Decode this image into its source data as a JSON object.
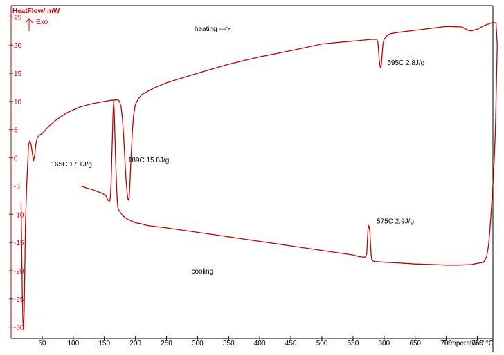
{
  "chart_data": {
    "type": "line",
    "ylabel": "HeatFlow/ mW",
    "exo_label": "Exo",
    "xlabel": "Temperature/ °C",
    "xlim": [
      0,
      775
    ],
    "ylim": [
      -32,
      27
    ],
    "xticks": [
      50,
      100,
      150,
      200,
      250,
      300,
      350,
      400,
      450,
      500,
      550,
      600,
      650,
      700,
      750
    ],
    "yticks": [
      25,
      20,
      15,
      10,
      5,
      0,
      -5,
      -10,
      -15,
      -20,
      -25,
      -30
    ],
    "grid": false,
    "colors": {
      "curve": "#c00000",
      "axis": "#cc0000",
      "frame": "#000000"
    },
    "series": [
      {
        "x": [
          16,
          17,
          18,
          19,
          20,
          21,
          22,
          23,
          25,
          27,
          28,
          29,
          30,
          32,
          34,
          36,
          38,
          40,
          42,
          45,
          50,
          60,
          70,
          80,
          90,
          100,
          110,
          120,
          130,
          140,
          150,
          155,
          160,
          165,
          170,
          173,
          175,
          177,
          179,
          181,
          183,
          185,
          187,
          188,
          189,
          190,
          191,
          193,
          195,
          197,
          200,
          205,
          210,
          230,
          250,
          300,
          350,
          400,
          450,
          500,
          550,
          580,
          588,
          590,
          591,
          592,
          593,
          594,
          595,
          596,
          597,
          598,
          600,
          605,
          610,
          620,
          650,
          700,
          725,
          730,
          735,
          740,
          750,
          760,
          775,
          780,
          782
        ],
        "y": [
          -8,
          -16,
          -24,
          -29,
          -30.5,
          -27,
          -20,
          -12,
          -5,
          -0.5,
          2,
          2.7,
          3,
          2.5,
          1,
          -0.5,
          0.5,
          2.5,
          3.5,
          4,
          4.3,
          5.5,
          6.5,
          7.3,
          8.0,
          8.5,
          9.0,
          9.3,
          9.6,
          9.8,
          10.0,
          10.1,
          10.2,
          10.2,
          10.3,
          10.2,
          9.8,
          9.0,
          7.0,
          4.0,
          0.0,
          -4.0,
          -6.5,
          -7.3,
          -7.5,
          -7.0,
          -5.0,
          0.0,
          4.5,
          7.5,
          9.5,
          10.5,
          11.2,
          12.4,
          13.3,
          15.0,
          16.6,
          17.9,
          19.0,
          20.2,
          20.7,
          21.0,
          21.0,
          20.5,
          19.0,
          17.5,
          16.5,
          16.0,
          16.0,
          17.0,
          18.5,
          20.0,
          21.0,
          21.7,
          22.0,
          22.2,
          22.6,
          23.3,
          23.2,
          22.9,
          22.6,
          22.5,
          22.8,
          23.4,
          24.0,
          23.9,
          20.0
        ]
      },
      {
        "x": [
          782,
          781,
          780,
          779,
          778,
          776,
          774,
          772,
          770,
          768,
          765,
          760,
          755,
          750,
          740,
          720,
          700,
          680,
          650,
          620,
          600,
          590,
          585,
          583,
          581,
          580,
          579,
          578,
          577,
          576,
          575,
          574,
          573,
          572,
          570,
          568,
          560,
          550,
          500,
          450,
          400,
          350,
          300,
          250,
          220,
          210,
          200,
          190,
          185,
          180,
          178,
          176,
          174,
          172,
          171,
          170,
          169,
          168,
          167,
          166,
          165,
          164,
          163,
          162,
          161,
          160,
          159,
          158,
          157,
          156,
          155,
          154,
          153,
          150,
          145,
          140,
          135,
          130,
          120,
          113
        ],
        "y": [
          20,
          15,
          10,
          5,
          2,
          -3,
          -6.5,
          -10,
          -13,
          -15.5,
          -17.5,
          -18.5,
          -18.6,
          -18.7,
          -18.9,
          -19.0,
          -19.0,
          -18.9,
          -18.8,
          -18.6,
          -18.5,
          -18.4,
          -18.4,
          -18.3,
          -18.2,
          -18.0,
          -17.0,
          -15.0,
          -13.0,
          -12.2,
          -12.0,
          -12.8,
          -15.0,
          -17.0,
          -17.5,
          -17.6,
          -17.5,
          -17.2,
          -16.4,
          -15.6,
          -14.8,
          -14.0,
          -13.2,
          -12.4,
          -12.0,
          -11.7,
          -11.5,
          -11.0,
          -10.7,
          -10.3,
          -10.0,
          -9.7,
          -9.4,
          -9.0,
          -8.0,
          -6.0,
          -3.0,
          0.0,
          4.0,
          8.0,
          10.0,
          8.0,
          4.0,
          0.0,
          -4.0,
          -6.5,
          -7.5,
          -7.7,
          -7.6,
          -7.5,
          -7.3,
          -7.0,
          -6.8,
          -6.5,
          -6.2,
          -6.0,
          -5.8,
          -5.6,
          -5.3,
          -5.0
        ]
      }
    ],
    "annotations": [
      {
        "text": "heating --->",
        "x": 295,
        "y": 22.5
      },
      {
        "text": "595C  2.8J/g",
        "x": 605,
        "y": 16.5
      },
      {
        "text": "165C  17.1J/g",
        "x": 64,
        "y": -1.5
      },
      {
        "text": "189C   15.8J/g",
        "x": 188,
        "y": -0.8
      },
      {
        "text": "575C  2.9J/g",
        "x": 588,
        "y": -11.6
      },
      {
        "text": "cooling",
        "x": 290,
        "y": -20.5
      }
    ]
  }
}
